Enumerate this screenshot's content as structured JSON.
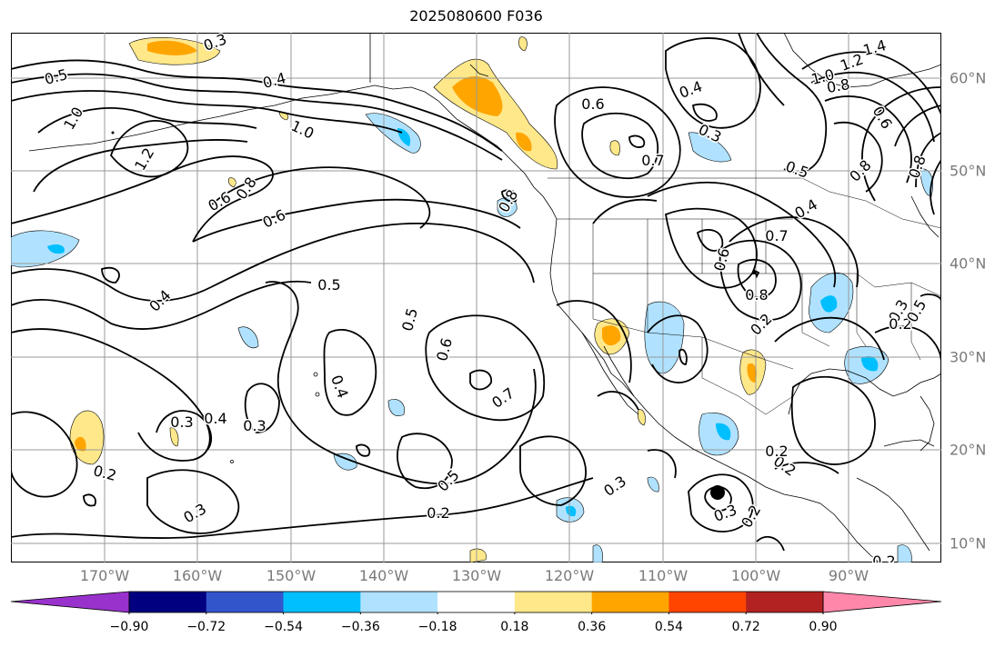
{
  "title": "2025080600 F036",
  "lon_labels": [
    "170°W",
    "160°W",
    "150°W",
    "140°W",
    "130°W",
    "120°W",
    "110°W",
    "100°W",
    "90°W"
  ],
  "lat_labels": [
    "60°N",
    "50°N",
    "40°N",
    "30°N",
    "20°N",
    "10°N"
  ],
  "colorbar": {
    "ticks": [
      "−0.90",
      "−0.72",
      "−0.54",
      "−0.36",
      "−0.18",
      "0.18",
      "0.36",
      "0.54",
      "0.72",
      "0.90"
    ],
    "colors": [
      "#9932cc",
      "#000080",
      "#3355cc",
      "#00bfff",
      "#b0e2ff",
      "#ffffff",
      "#ffe88a",
      "#ffa500",
      "#ff4500",
      "#b22222",
      "#ff88aa"
    ],
    "extend": "both"
  },
  "contour_labels": [
    "0.3",
    "0.5",
    "1.0",
    "1.2",
    "0.4",
    "0.6",
    "0.8",
    "0.6",
    "1.0",
    "0.6",
    "0.7",
    "0.4",
    "0.3",
    "0.8",
    "0.5",
    "0.4",
    "0.5",
    "0.6",
    "0.4",
    "0.7",
    "0.3",
    "0.4",
    "0.3",
    "0.2",
    "0.5",
    "0.2",
    "0.3",
    "0.3",
    "0.2",
    "0.3",
    "0.2",
    "0.8",
    "0.7",
    "0.6",
    "0.8",
    "0.4",
    "0.2",
    "1.4",
    "1.2",
    "1.0",
    "0.8",
    "0.6",
    "0.5",
    "0.8",
    "0.3",
    "0.2",
    "0.5",
    "0.2",
    "0.2",
    "0.2"
  ],
  "colors": {
    "land_outline": "#000000",
    "grid": "#999999",
    "axis_label": "#7a7a7a"
  }
}
